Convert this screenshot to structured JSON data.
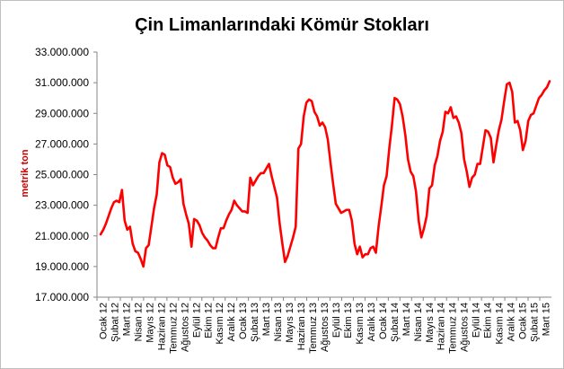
{
  "chart_data": {
    "type": "line",
    "title": "Çin Limanlarındaki Kömür Stokları",
    "ylabel": "metrik ton",
    "xlabel": "",
    "ylim": [
      17000000,
      33000000
    ],
    "yticks": [
      17000000,
      19000000,
      21000000,
      23000000,
      25000000,
      27000000,
      29000000,
      31000000,
      33000000
    ],
    "ytick_labels": [
      "17.000.000",
      "19.000.000",
      "21.000.000",
      "23.000.000",
      "25.000.000",
      "27.000.000",
      "29.000.000",
      "31.000.000",
      "33.000.000"
    ],
    "x_tick_labels": [
      "Ocak 12",
      "Şubat 12",
      "Mart 12",
      "Nisan 12",
      "Mayıs 12",
      "Haziran 12",
      "Temmuz 12",
      "Ağustos 12",
      "Eylül 12",
      "Ekim 12",
      "Kasım 12",
      "Aralık 12",
      "Ocak 13",
      "Şubat 13",
      "Mart 13",
      "Nisan 13",
      "Mayıs 13",
      "Haziran 13",
      "Temmuz 13",
      "Ağustos 13",
      "Eylül 13",
      "Ekim 13",
      "Kasım 13",
      "Aralık 13",
      "Ocak 14",
      "Şubat 14",
      "Mart 14",
      "Nisan 14",
      "Mayıs 14",
      "Haziran 14",
      "Temmuz 14",
      "Ağustos 14",
      "Eylül 14",
      "Ekim 14",
      "Kasım 14",
      "Aralık 14",
      "Ocak 15",
      "Şubat 15",
      "Mart 15"
    ],
    "grid": false,
    "legend": "none",
    "line_color": "#ff0000",
    "series": [
      {
        "values": [
          21100000,
          21400000,
          21800000,
          22300000,
          22800000,
          23200000,
          23300000,
          23200000,
          24000000,
          22000000,
          21400000,
          21600000,
          20500000,
          20000000,
          19900000,
          19500000,
          19000000,
          20200000,
          20400000,
          21600000,
          22800000,
          23700000,
          25800000,
          26400000,
          26300000,
          25600000,
          25500000,
          24800000,
          24400000,
          24500000,
          24700000,
          23100000,
          22400000,
          21800000,
          20300000,
          22100000,
          22000000,
          21700000,
          21200000,
          20900000,
          20700000,
          20400000,
          20200000,
          20200000,
          20900000,
          21500000,
          21500000,
          22000000,
          22400000,
          22700000,
          23300000,
          23000000,
          22800000,
          22600000,
          22600000,
          22500000,
          24800000,
          24300000,
          24600000,
          24900000,
          25100000,
          25100000,
          25400000,
          25700000,
          24900000,
          24200000,
          23500000,
          21800000,
          20500000,
          19300000,
          19700000,
          20300000,
          20900000,
          21600000,
          26700000,
          27000000,
          28800000,
          29700000,
          29900000,
          29800000,
          29100000,
          28800000,
          28200000,
          28400000,
          28100000,
          27300000,
          25800000,
          24400000,
          23100000,
          22800000,
          22500000,
          22600000,
          22700000,
          22700000,
          22000000,
          20500000,
          19800000,
          20300000,
          19600000,
          19800000,
          19800000,
          20200000,
          20300000,
          19900000,
          21600000,
          22900000,
          24300000,
          24900000,
          26700000,
          28200000,
          30000000,
          29900000,
          29600000,
          28800000,
          27600000,
          26000000,
          25200000,
          24900000,
          23900000,
          22000000,
          20900000,
          21500000,
          22300000,
          24100000,
          24300000,
          25600000,
          26200000,
          27200000,
          27800000,
          29100000,
          29000000,
          29400000,
          28700000,
          28800000,
          28400000,
          27700000,
          26000000,
          25200000,
          24200000,
          24800000,
          25000000,
          25700000,
          25700000,
          26800000,
          27900000,
          27800000,
          27400000,
          25800000,
          26900000,
          27900000,
          28600000,
          29800000,
          30900000,
          31000000,
          30400000,
          28400000,
          28500000,
          27900000,
          26600000,
          27200000,
          28500000,
          28900000,
          29000000,
          29500000,
          30000000,
          30200000,
          30500000,
          30700000,
          31100000
        ]
      }
    ]
  }
}
